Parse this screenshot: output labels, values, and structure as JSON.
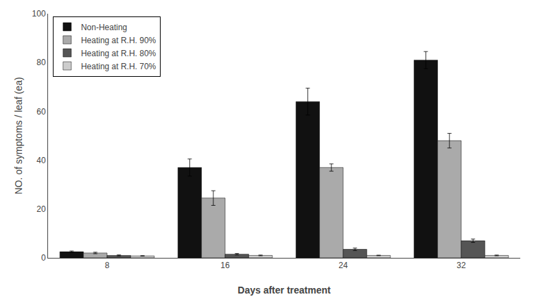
{
  "chart_data": {
    "type": "bar",
    "categories": [
      "8",
      "16",
      "24",
      "32"
    ],
    "series": [
      {
        "name": "Non-Heating",
        "color": "#111111",
        "values": [
          2.5,
          37.0,
          64.0,
          81.0
        ],
        "errors": [
          0.3,
          3.5,
          5.5,
          3.5
        ]
      },
      {
        "name": "Heating at R.H. 90%",
        "color": "#aaaaaa",
        "values": [
          2.0,
          24.5,
          37.0,
          48.0
        ],
        "errors": [
          0.3,
          3.0,
          1.5,
          3.0
        ]
      },
      {
        "name": "Heating at R.H. 80%",
        "color": "#555555",
        "values": [
          1.0,
          1.5,
          3.5,
          7.0
        ],
        "errors": [
          0.2,
          0.3,
          0.5,
          0.7
        ]
      },
      {
        "name": "Heating at R.H. 70%",
        "color": "#cccccc",
        "values": [
          0.8,
          1.0,
          1.0,
          1.0
        ],
        "errors": [
          0.1,
          0.15,
          0.1,
          0.15
        ]
      }
    ],
    "xlabel": "Days after treatment",
    "ylabel": "NO. of symptoms / leaf (ea)",
    "ylim": [
      0,
      100
    ],
    "yticks": [
      0,
      20,
      40,
      60,
      80,
      100
    ],
    "grid": false,
    "legend": "upper left"
  }
}
